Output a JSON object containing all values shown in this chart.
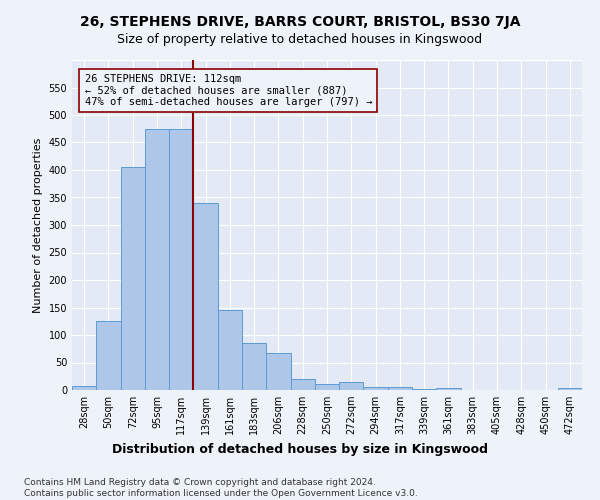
{
  "title": "26, STEPHENS DRIVE, BARRS COURT, BRISTOL, BS30 7JA",
  "subtitle": "Size of property relative to detached houses in Kingswood",
  "xlabel": "Distribution of detached houses by size in Kingswood",
  "ylabel": "Number of detached properties",
  "bar_labels": [
    "28sqm",
    "50sqm",
    "72sqm",
    "95sqm",
    "117sqm",
    "139sqm",
    "161sqm",
    "183sqm",
    "206sqm",
    "228sqm",
    "250sqm",
    "272sqm",
    "294sqm",
    "317sqm",
    "339sqm",
    "361sqm",
    "383sqm",
    "405sqm",
    "428sqm",
    "450sqm",
    "472sqm"
  ],
  "bar_values": [
    7,
    126,
    406,
    474,
    474,
    340,
    146,
    85,
    67,
    20,
    11,
    14,
    6,
    5,
    1,
    4,
    0,
    0,
    0,
    0,
    4
  ],
  "bar_color": "#aec6e8",
  "bar_edge_color": "#5b9bd5",
  "property_line_x": 4.5,
  "annotation_text": "26 STEPHENS DRIVE: 112sqm\n← 52% of detached houses are smaller (887)\n47% of semi-detached houses are larger (797) →",
  "vline_color": "#8b0000",
  "annotation_box_edge": "#8b0000",
  "background_color": "#eef2f9",
  "plot_bg_color": "#e4eaf5",
  "grid_color": "#ffffff",
  "ylim": [
    0,
    600
  ],
  "yticks": [
    0,
    50,
    100,
    150,
    200,
    250,
    300,
    350,
    400,
    450,
    500,
    550,
    600
  ],
  "footer": "Contains HM Land Registry data © Crown copyright and database right 2024.\nContains public sector information licensed under the Open Government Licence v3.0.",
  "title_fontsize": 10,
  "subtitle_fontsize": 9,
  "xlabel_fontsize": 9,
  "ylabel_fontsize": 8,
  "tick_fontsize": 7,
  "annot_fontsize": 7.5,
  "footer_fontsize": 6.5
}
